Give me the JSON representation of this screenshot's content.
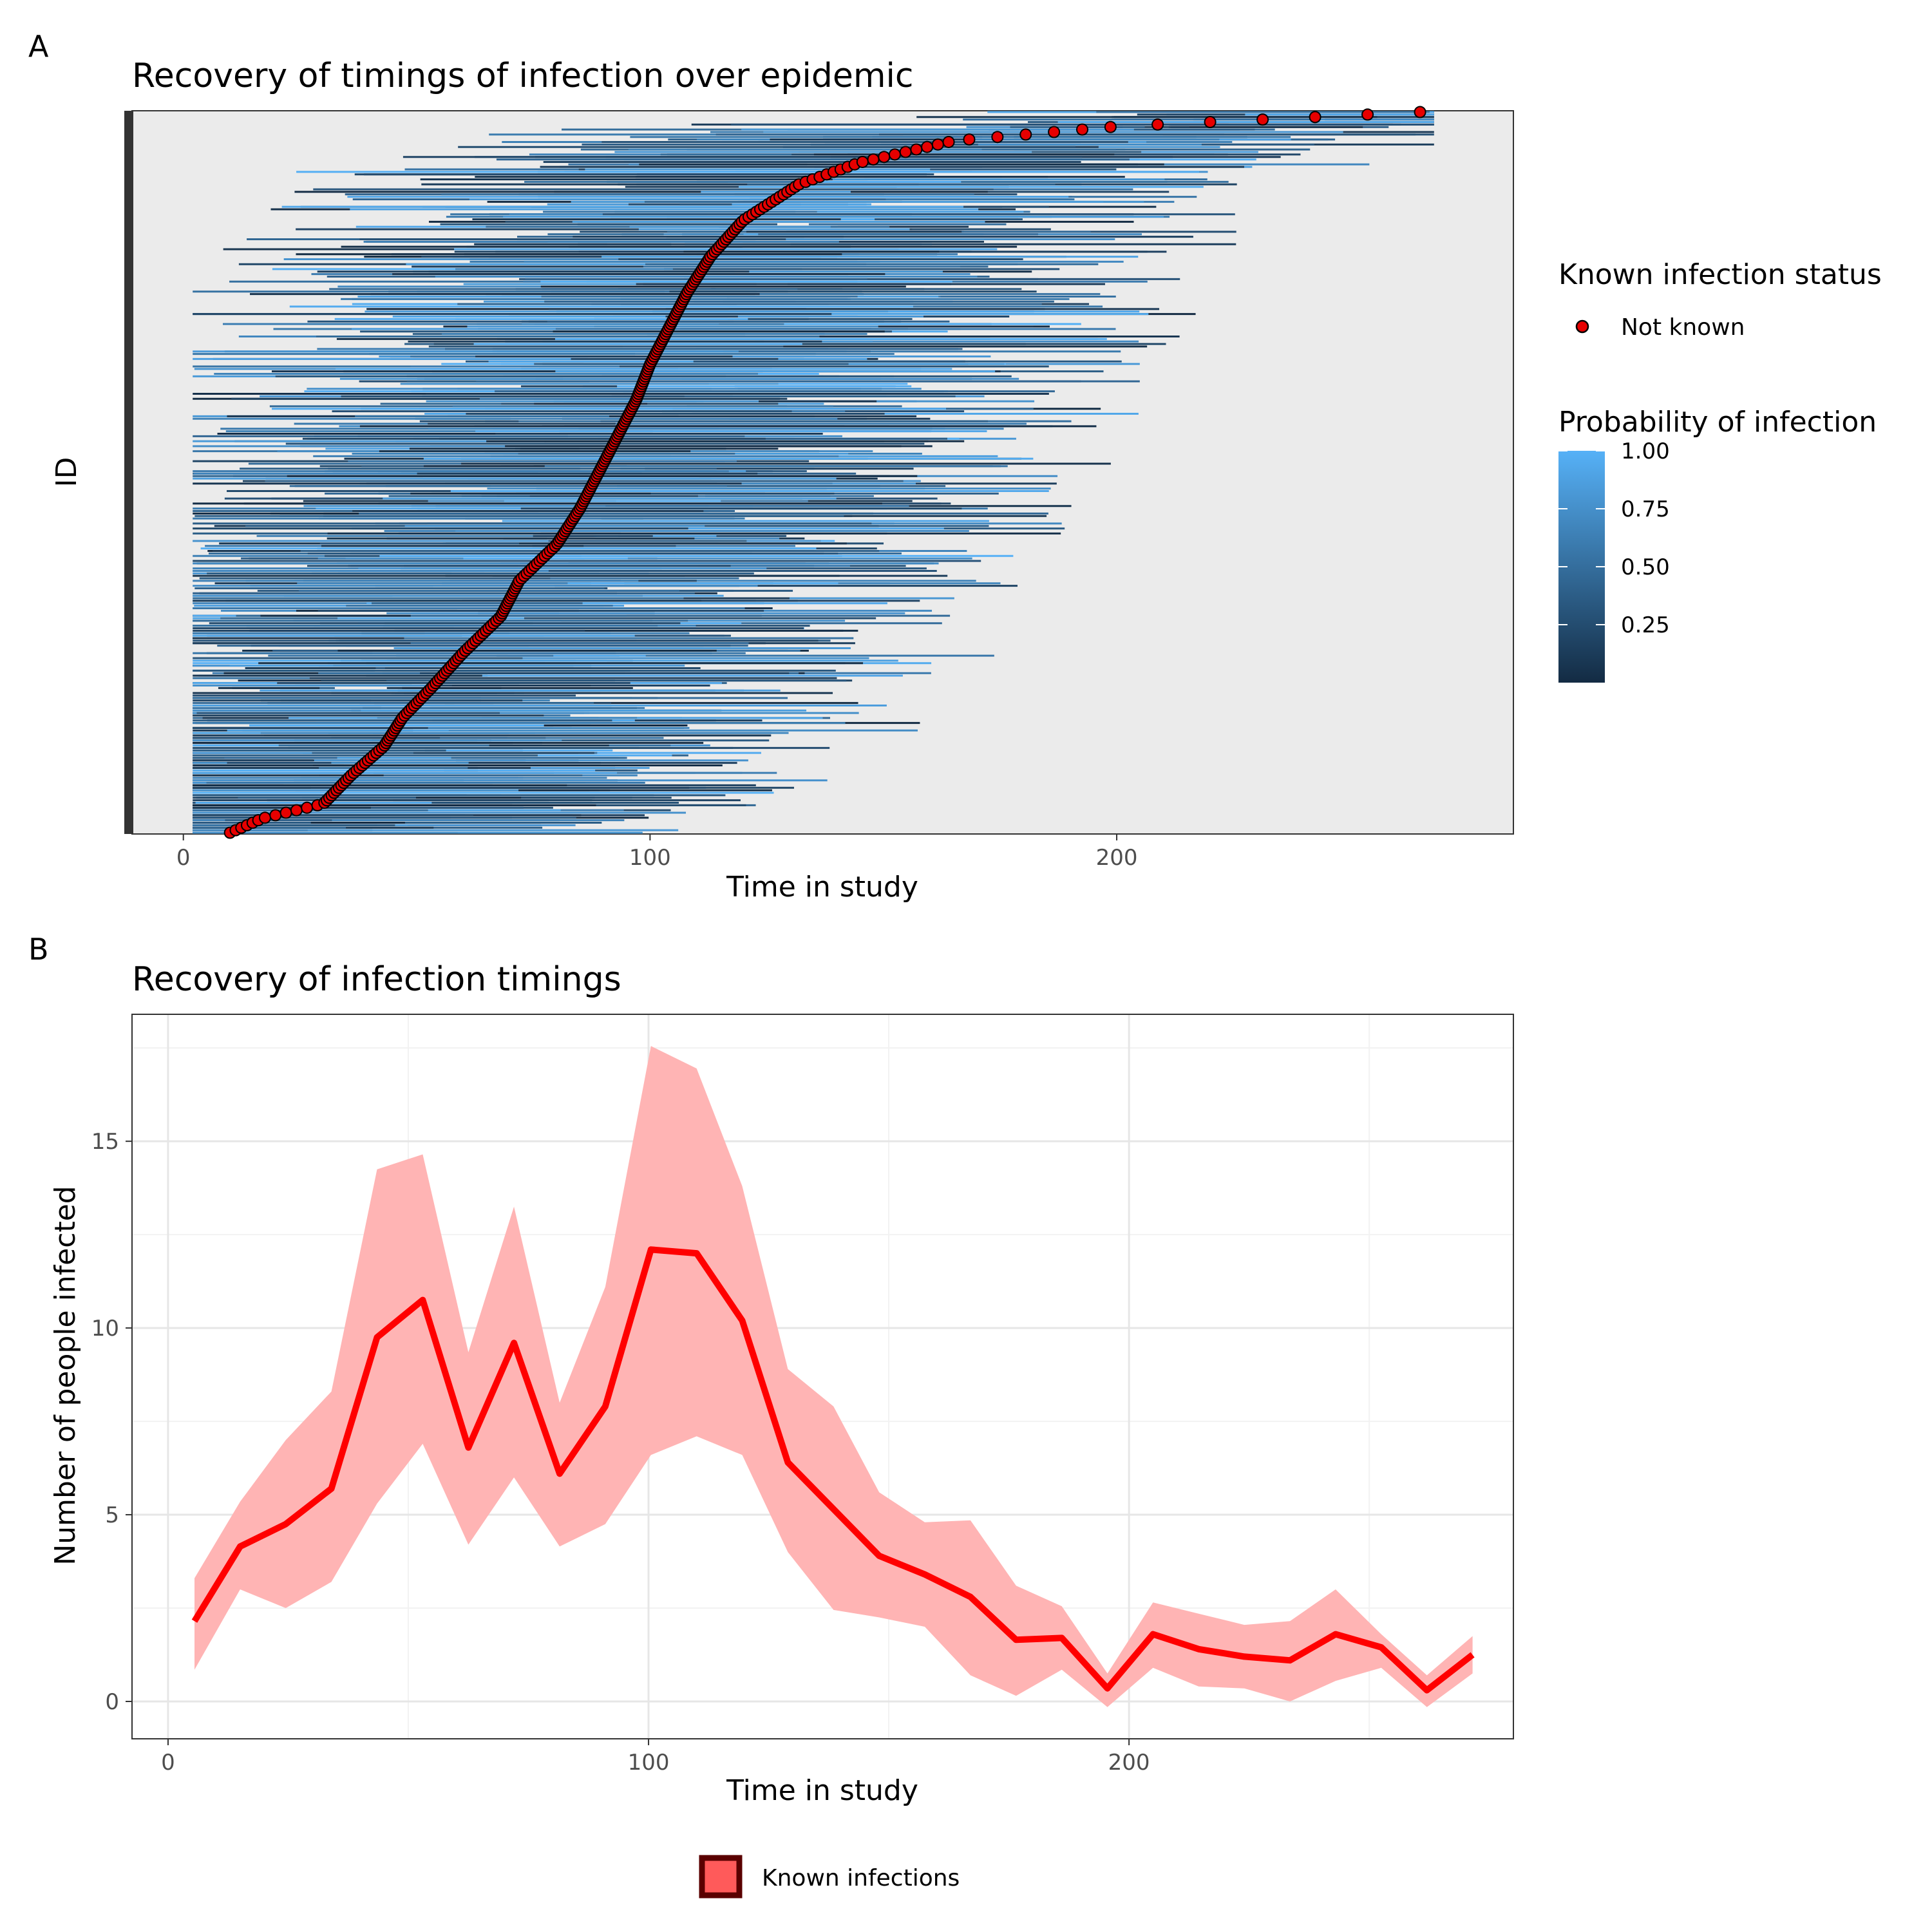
{
  "panel_a": {
    "tag": "A",
    "chart_data": {
      "type": "scatter",
      "title": "Recovery of timings of infection over epidemic",
      "xlabel": "Time in study",
      "ylabel": "ID",
      "x_ticks": [
        0,
        100,
        200
      ],
      "xlim": [
        -11,
        285
      ],
      "grid": false,
      "legend_position": "right",
      "description_note": "",
      "point_series": {
        "name": "Not known",
        "color": "#e60000",
        "infection_time_percentiles": [
          [
            0.0,
            10
          ],
          [
            0.02,
            17
          ],
          [
            0.04,
            30
          ],
          [
            0.08,
            36
          ],
          [
            0.12,
            43
          ],
          [
            0.16,
            47
          ],
          [
            0.2,
            53
          ],
          [
            0.25,
            60
          ],
          [
            0.3,
            68
          ],
          [
            0.35,
            72
          ],
          [
            0.4,
            80
          ],
          [
            0.45,
            85
          ],
          [
            0.5,
            89
          ],
          [
            0.55,
            93
          ],
          [
            0.6,
            97
          ],
          [
            0.65,
            100
          ],
          [
            0.7,
            104
          ],
          [
            0.75,
            108
          ],
          [
            0.8,
            113
          ],
          [
            0.85,
            120
          ],
          [
            0.9,
            132
          ],
          [
            0.93,
            145
          ],
          [
            0.96,
            165
          ],
          [
            0.98,
            200
          ],
          [
            1.0,
            265
          ]
        ]
      },
      "color_scale": {
        "title": "Probability of infection",
        "ticks": [
          "0.25",
          "0.50",
          "0.75",
          "1.00"
        ],
        "tick_values": [
          0.25,
          0.5,
          0.75,
          1.0
        ],
        "range": [
          0.0,
          1.0
        ],
        "low_color": "#132b43",
        "high_color": "#56b1f7"
      },
      "shape_legend": {
        "title": "Known infection status",
        "entries": [
          "Not known"
        ]
      }
    }
  },
  "panel_b": {
    "tag": "B",
    "chart_data": {
      "type": "line",
      "title": "Recovery of infection timings",
      "xlabel": "Time in study",
      "ylabel": "Number of people infected",
      "x_ticks": [
        0,
        100,
        200
      ],
      "y_ticks": [
        0,
        5,
        10,
        15
      ],
      "xlim": [
        -7.5,
        280
      ],
      "ylim": [
        -1,
        18.4
      ],
      "grid": true,
      "legend_position": "bottom",
      "series": [
        {
          "name": "",
          "color": "#ff0000",
          "x": [
            5.5,
            15,
            24.5,
            34,
            43.5,
            53,
            62.5,
            72,
            81.5,
            91,
            100.5,
            110,
            119.5,
            129,
            138.5,
            148,
            157.5,
            167,
            176.5,
            186,
            195.5,
            205,
            214.5,
            224,
            233.5,
            243,
            252.5,
            262,
            271.5
          ],
          "y": [
            2.15,
            4.15,
            4.75,
            5.7,
            9.75,
            10.75,
            6.8,
            9.6,
            6.1,
            7.9,
            12.1,
            12.0,
            10.2,
            6.4,
            5.15,
            3.9,
            3.4,
            2.8,
            1.65,
            1.7,
            0.35,
            1.8,
            1.4,
            1.2,
            1.1,
            1.8,
            1.45,
            0.3,
            1.25
          ],
          "lower": [
            0.85,
            3.0,
            2.5,
            3.2,
            5.3,
            6.9,
            4.2,
            6.0,
            4.15,
            4.75,
            6.6,
            7.1,
            6.6,
            4.0,
            2.45,
            2.25,
            2.0,
            0.7,
            0.15,
            0.85,
            -0.15,
            0.9,
            0.4,
            0.35,
            0.0,
            0.55,
            0.9,
            -0.15,
            0.75
          ],
          "upper": [
            3.3,
            5.35,
            7.0,
            8.3,
            14.25,
            14.65,
            9.35,
            13.25,
            8.0,
            11.1,
            17.55,
            16.95,
            13.8,
            8.9,
            7.9,
            5.6,
            4.8,
            4.85,
            3.1,
            2.55,
            0.75,
            2.65,
            2.35,
            2.05,
            2.15,
            3.0,
            1.8,
            0.7,
            1.75
          ]
        }
      ],
      "band_color": "#ffb4b4",
      "legend": {
        "entries": [
          "Known infections"
        ],
        "fill": "#ff5a5a",
        "stroke": "#5a0000"
      }
    }
  }
}
